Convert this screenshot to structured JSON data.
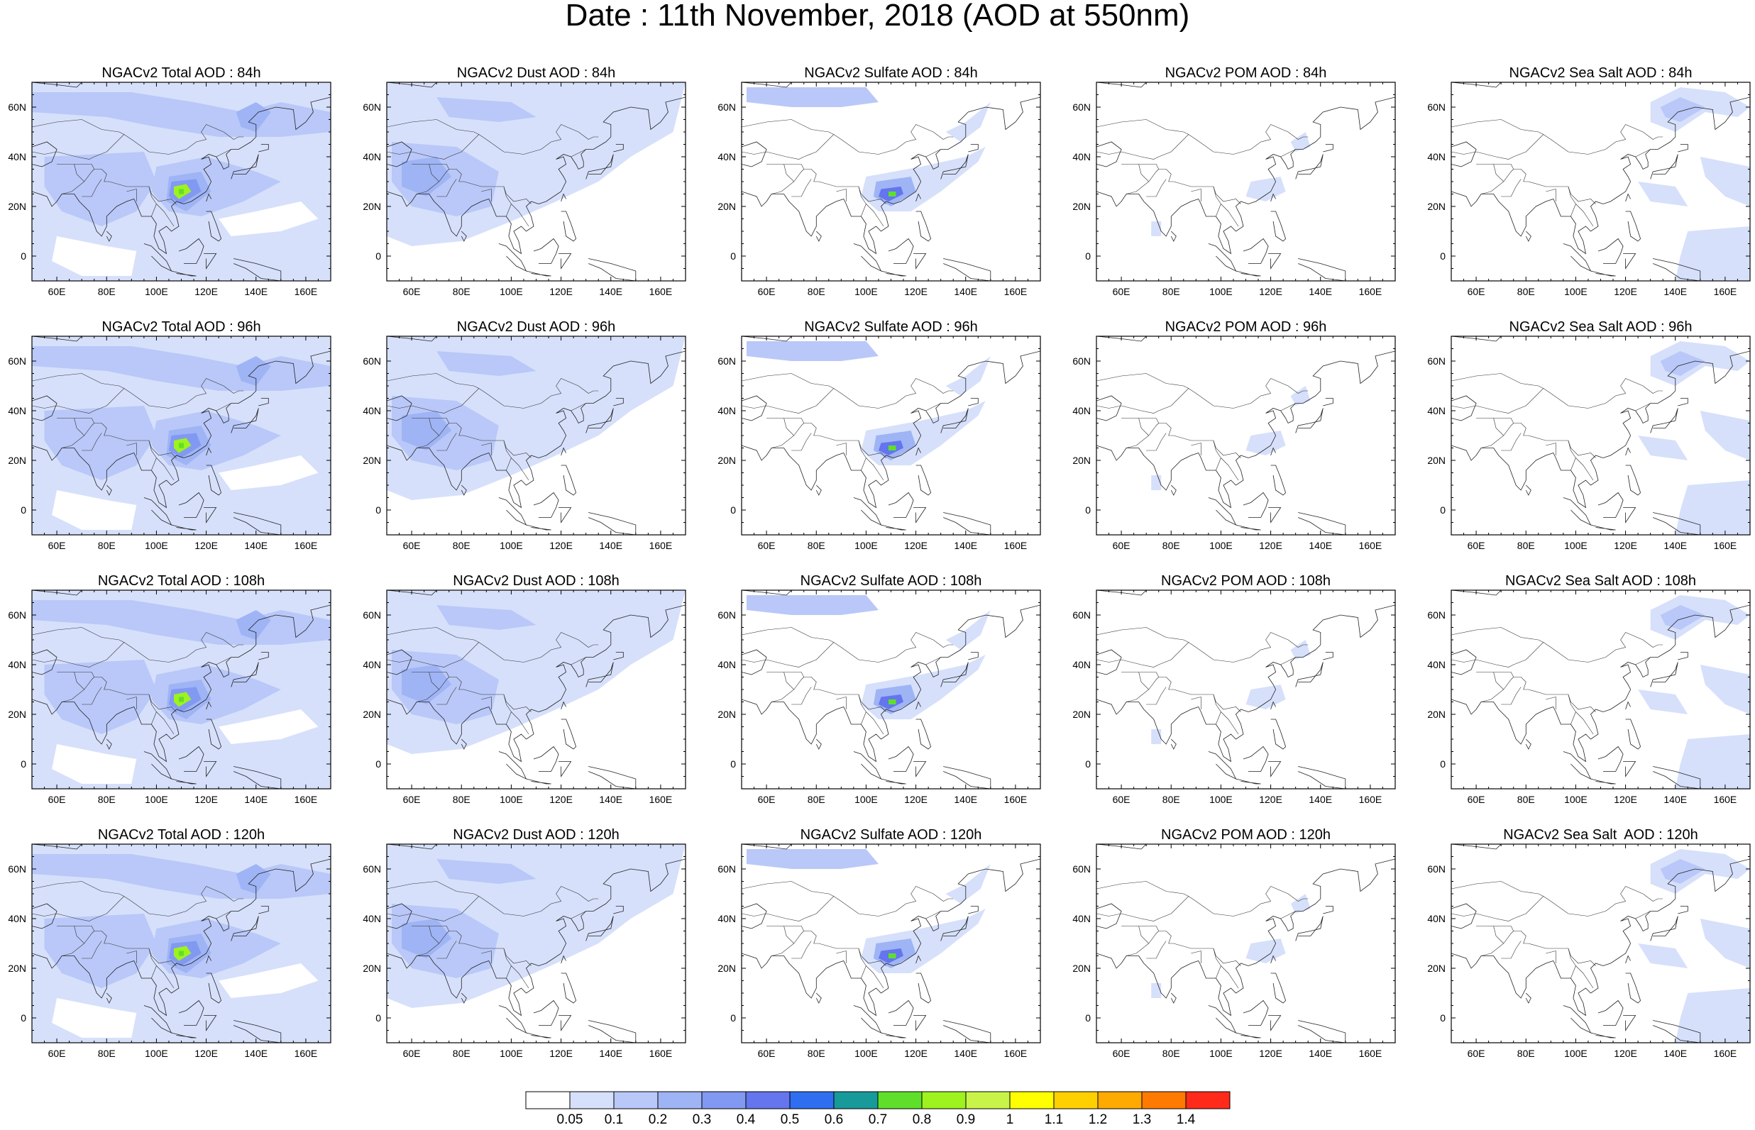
{
  "title": "Date : 11th November, 2018 (AOD at 550nm)",
  "lon_ticks": [
    "60E",
    "80E",
    "100E",
    "120E",
    "140E",
    "160E"
  ],
  "lat_ticks": [
    "60N",
    "40N",
    "20N",
    "0"
  ],
  "panels": [
    {
      "title": "NGACv2 Total AOD : 84h",
      "field": "total",
      "hour": "84h"
    },
    {
      "title": "NGACv2 Dust AOD : 84h",
      "field": "dust",
      "hour": "84h"
    },
    {
      "title": "NGACv2 Sulfate AOD : 84h",
      "field": "sulfate",
      "hour": "84h"
    },
    {
      "title": "NGACv2 POM AOD : 84h",
      "field": "pom",
      "hour": "84h"
    },
    {
      "title": "NGACv2 Sea Salt AOD : 84h",
      "field": "seasalt",
      "hour": "84h"
    },
    {
      "title": "NGACv2 Total AOD : 96h",
      "field": "total",
      "hour": "96h"
    },
    {
      "title": "NGACv2 Dust AOD : 96h",
      "field": "dust",
      "hour": "96h"
    },
    {
      "title": "NGACv2 Sulfate AOD : 96h",
      "field": "sulfate",
      "hour": "96h"
    },
    {
      "title": "NGACv2 POM AOD : 96h",
      "field": "pom",
      "hour": "96h"
    },
    {
      "title": "NGACv2 Sea Salt AOD : 96h",
      "field": "seasalt",
      "hour": "96h"
    },
    {
      "title": "NGACv2 Total AOD : 108h",
      "field": "total",
      "hour": "108h"
    },
    {
      "title": "NGACv2 Dust AOD : 108h",
      "field": "dust",
      "hour": "108h"
    },
    {
      "title": "NGACv2 Sulfate AOD : 108h",
      "field": "sulfate",
      "hour": "108h"
    },
    {
      "title": "NGACv2 POM AOD : 108h",
      "field": "pom",
      "hour": "108h"
    },
    {
      "title": "NGACv2 Sea Salt AOD : 108h",
      "field": "seasalt",
      "hour": "108h"
    },
    {
      "title": "NGACv2 Total AOD : 120h",
      "field": "total",
      "hour": "120h"
    },
    {
      "title": "NGACv2 Dust AOD : 120h",
      "field": "dust",
      "hour": "120h"
    },
    {
      "title": "NGACv2 Sulfate AOD : 120h",
      "field": "sulfate",
      "hour": "120h"
    },
    {
      "title": "NGACv2 POM AOD : 120h",
      "field": "pom",
      "hour": "120h"
    },
    {
      "title": "NGACv2 Sea Salt  AOD : 120h",
      "field": "seasalt",
      "hour": "120h"
    }
  ],
  "colorbar": {
    "labels": [
      "0.05",
      "0.1",
      "0.2",
      "0.3",
      "0.4",
      "0.5",
      "0.6",
      "0.7",
      "0.8",
      "0.9",
      "1",
      "1.1",
      "1.2",
      "1.3",
      "1.4"
    ],
    "colors": [
      "#ffffff",
      "#d6e0fb",
      "#b9c8f8",
      "#9fb4f5",
      "#8299f2",
      "#6475ee",
      "#2f6ef0",
      "#189a9a",
      "#5fdf2a",
      "#9ef21e",
      "#c8f44a",
      "#ffff00",
      "#ffd000",
      "#ffaa00",
      "#ff7a00",
      "#ff2a1a"
    ]
  }
}
